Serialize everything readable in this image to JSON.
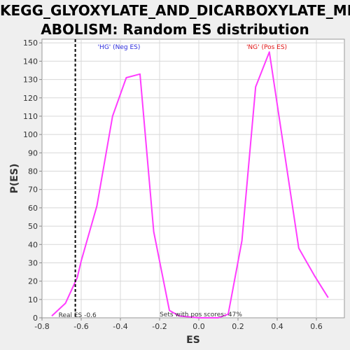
{
  "window": {
    "title_line1": "KEGG_GLYOXYLATE_AND_DICARBOXYLATE_MET",
    "title_line2": "ABOLISM: Random ES distribution"
  },
  "chart_data": {
    "type": "line",
    "title": "KEGG_GLYOXYLATE_AND_DICARBOXYLATE_METABOLISM: Random ES distribution",
    "xlabel": "ES",
    "ylabel": "P(ES)",
    "xlim": [
      -0.8,
      0.7
    ],
    "ylim": [
      0,
      150
    ],
    "xticks": [
      "-0.8",
      "-0.6",
      "-0.4",
      "-0.2",
      "0.0",
      "0.2",
      "0.4",
      "0.6"
    ],
    "yticks": [
      "0",
      "10",
      "20",
      "30",
      "40",
      "50",
      "60",
      "70",
      "80",
      "90",
      "100",
      "110",
      "120",
      "130",
      "140",
      "150"
    ],
    "grid": true,
    "series": [
      {
        "color": "#ff3cff",
        "x": [
          -0.75,
          -0.68,
          -0.62,
          -0.6,
          -0.52,
          -0.44,
          -0.37,
          -0.3,
          -0.23,
          -0.15,
          -0.1,
          0.0,
          0.1,
          0.15,
          0.22,
          0.29,
          0.36,
          0.44,
          0.51,
          0.59,
          0.66
        ],
        "y": [
          1,
          8,
          22,
          31,
          61,
          110,
          131,
          133,
          47,
          4,
          1,
          0,
          0,
          2,
          42,
          126,
          145,
          88,
          38,
          23,
          11
        ]
      }
    ],
    "vline": {
      "x": -0.63,
      "label": "Real ES -0.6"
    },
    "annotations": {
      "neg_label": "'HG' (Neg ES)",
      "pos_label": "'NG' (Pos ES)",
      "pos_scores": "Sets with pos scores: 47%"
    },
    "colors": {
      "neg": "#2a2adc",
      "pos": "#e01414",
      "line": "#ff3cff"
    }
  }
}
